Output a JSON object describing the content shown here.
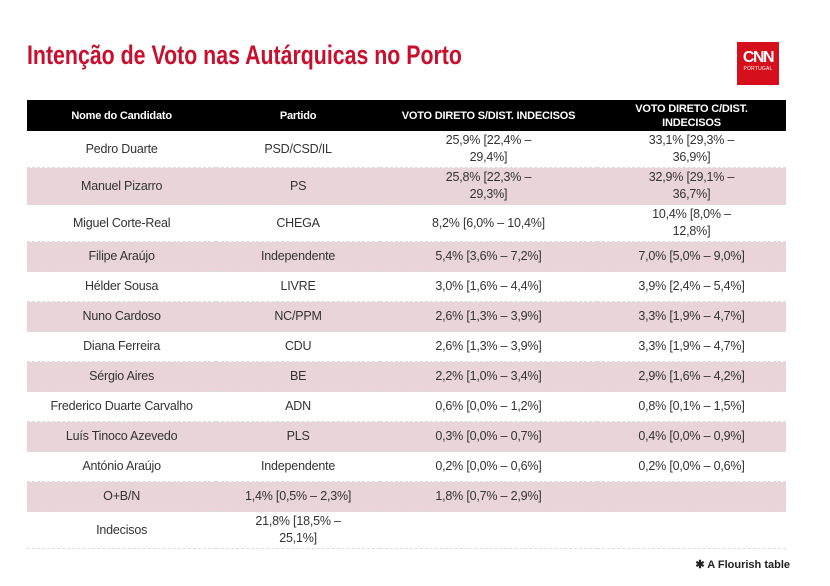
{
  "title": "Intenção de Voto nas Autárquicas no Porto",
  "logo": {
    "brand": "CNN",
    "sub": "PORTUGAL",
    "color": "#d50f1b"
  },
  "accent_color": "#c8102e",
  "headers": [
    "Nome do Candidato",
    "Partido",
    "VOTO DIRETO S/DIST. INDECISOS",
    "VOTO DIRETO C/DIST. INDECISOS"
  ],
  "rows": [
    [
      "Pedro Duarte",
      "PSD/CSD/IL",
      "25,9% [22,4% – 29,4%]",
      "33,1% [29,3% – 36,9%]"
    ],
    [
      "Manuel Pizarro",
      "PS",
      "25,8% [22,3% – 29,3%]",
      "32,9% [29,1% – 36,7%]"
    ],
    [
      "Miguel Corte-Real",
      "CHEGA",
      "8,2% [6,0% – 10,4%]",
      "10,4% [8,0% – 12,8%]"
    ],
    [
      "Filipe Araújo",
      "Independente",
      "5,4% [3,6% – 7,2%]",
      "7,0% [5,0% – 9,0%]"
    ],
    [
      "Hélder Sousa",
      "LIVRE",
      "3,0% [1,6% – 4,4%]",
      "3,9% [2,4% – 5,4%]"
    ],
    [
      "Nuno Cardoso",
      "NC/PPM",
      "2,6% [1,3% – 3,9%]",
      "3,3% [1,9% – 4,7%]"
    ],
    [
      "Diana Ferreira",
      "CDU",
      "2,6% [1,3% – 3,9%]",
      "3,3% [1,9% – 4,7%]"
    ],
    [
      "Sérgio Aires",
      "BE",
      "2,2% [1,0% – 3,4%]",
      "2,9% [1,6% – 4,2%]"
    ],
    [
      "Frederico Duarte Carvalho",
      "ADN",
      "0,6% [0,0% – 1,2%]",
      "0,8% [0,1% – 1,5%]"
    ],
    [
      "Luís Tinoco Azevedo",
      "PLS",
      "0,3% [0,0% – 0,7%]",
      "0,4% [0,0% – 0,9%]"
    ],
    [
      "António Araújo",
      "Independente",
      "0,2% [0,0% – 0,6%]",
      "0,2% [0,0% – 0,6%]"
    ],
    [
      "O+B/N",
      "1,4% [0,5% – 2,3%]",
      "1,8% [0,7% – 2,9%]",
      ""
    ],
    [
      "Indecisos",
      "21,8% [18,5% – 25,1%]",
      "",
      ""
    ]
  ],
  "footer": "A Flourish table"
}
